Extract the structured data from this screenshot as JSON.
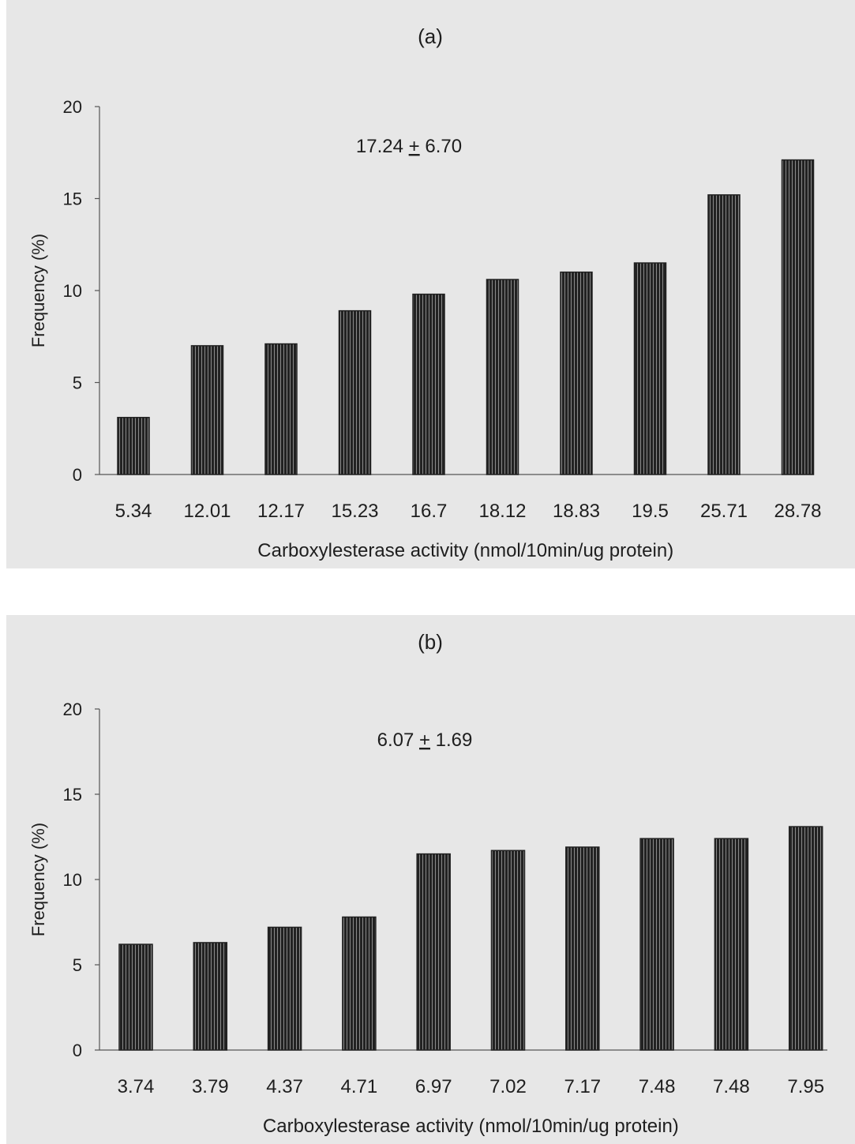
{
  "chart_data": [
    {
      "type": "bar",
      "title": "(a)",
      "annotation": "17.24 ± 6.70",
      "annotation_parts": [
        "17.24 ",
        "+",
        " 6.70"
      ],
      "xlabel": "Carboxylesterase activity (nmol/10min/ug protein)",
      "ylabel": "Frequency (%)",
      "ylim": [
        0,
        20
      ],
      "yticks": [
        0,
        5,
        10,
        15,
        20
      ],
      "categories": [
        "5.34",
        "12.01",
        "12.17",
        "15.23",
        "16.7",
        "18.12",
        "18.83",
        "19.5",
        "25.71",
        "28.78"
      ],
      "values": [
        3.1,
        7.0,
        7.1,
        8.9,
        9.8,
        10.6,
        11.0,
        11.5,
        15.2,
        17.1
      ],
      "grid": false,
      "bar_color": "#222222",
      "background": "#e7e7e7"
    },
    {
      "type": "bar",
      "title": "(b)",
      "annotation": "6.07 ± 1.69",
      "annotation_parts": [
        "6.07 ",
        "+",
        " 1.69"
      ],
      "xlabel": "Carboxylesterase activity (nmol/10min/ug protein)",
      "ylabel": "Frequency (%)",
      "ylim": [
        0,
        20
      ],
      "yticks": [
        0,
        5,
        10,
        15,
        20
      ],
      "categories": [
        "3.74",
        "3.79",
        "4.37",
        "4.71",
        "6.97",
        "7.02",
        "7.17",
        "7.48",
        "7.48",
        "7.95"
      ],
      "values": [
        6.2,
        6.3,
        7.2,
        7.8,
        11.5,
        11.7,
        11.9,
        12.4,
        12.4,
        13.1
      ],
      "grid": false,
      "bar_color": "#222222",
      "background": "#e7e7e7"
    }
  ]
}
